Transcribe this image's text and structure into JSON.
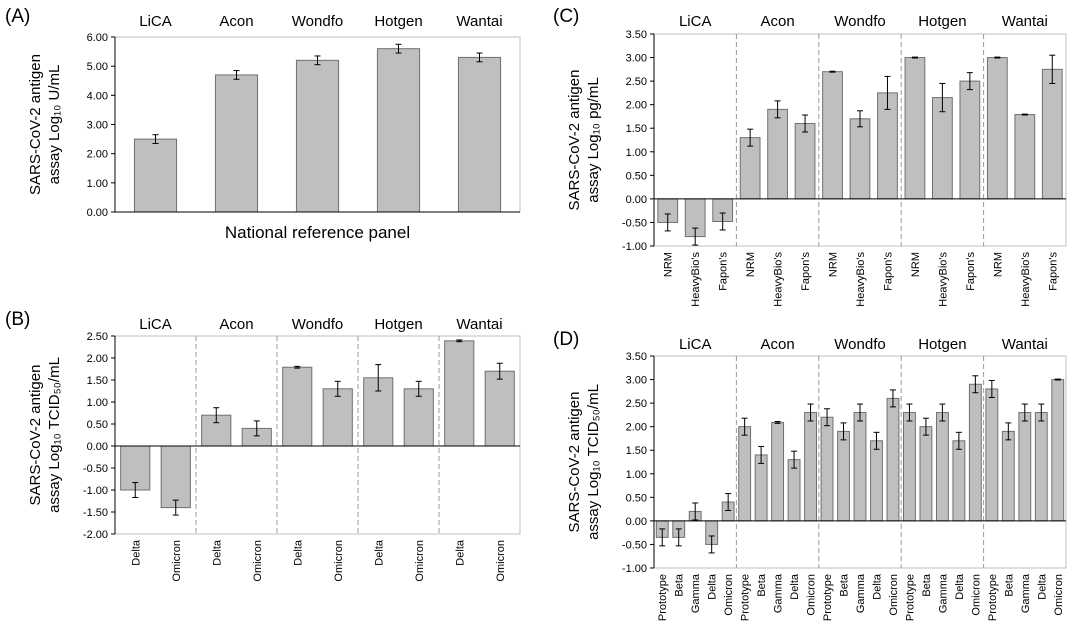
{
  "chart_data": [
    {
      "panel": "(A)",
      "type": "bar",
      "ylabel_line1": "SARS-CoV-2 antigen",
      "ylabel_line2": "assay Log₁₀ U/mL",
      "xlabel": "National reference panel",
      "ylim": [
        0,
        6
      ],
      "yticks": [
        "0.00",
        "1.00",
        "2.00",
        "3.00",
        "4.00",
        "5.00",
        "6.00"
      ],
      "groups": [
        {
          "name": "LiCA",
          "categories": [
            ""
          ],
          "values": [
            2.5
          ],
          "errors": [
            0.15
          ]
        },
        {
          "name": "Acon",
          "categories": [
            ""
          ],
          "values": [
            4.7
          ],
          "errors": [
            0.15
          ]
        },
        {
          "name": "Wondfo",
          "categories": [
            ""
          ],
          "values": [
            5.2
          ],
          "errors": [
            0.15
          ]
        },
        {
          "name": "Hotgen",
          "categories": [
            ""
          ],
          "values": [
            5.6
          ],
          "errors": [
            0.15
          ]
        },
        {
          "name": "Wantai",
          "categories": [
            ""
          ],
          "values": [
            5.3
          ],
          "errors": [
            0.15
          ]
        }
      ]
    },
    {
      "panel": "(B)",
      "type": "bar",
      "ylabel_line1": "SARS-CoV-2 antigen",
      "ylabel_line2": "assay Log₁₀ TCID₅₀/mL",
      "xlabel": "",
      "ylim": [
        -2,
        2.5
      ],
      "yticks": [
        "-2.00",
        "-1.50",
        "-1.00",
        "-0.50",
        "0.00",
        "0.50",
        "1.00",
        "1.50",
        "2.00",
        "2.50"
      ],
      "groups": [
        {
          "name": "LiCA",
          "categories": [
            "Delta",
            "Omicron"
          ],
          "values": [
            -1.0,
            -1.4
          ],
          "errors": [
            0.17,
            0.17
          ]
        },
        {
          "name": "Acon",
          "categories": [
            "Delta",
            "Omicron"
          ],
          "values": [
            0.7,
            0.4
          ],
          "errors": [
            0.17,
            0.17
          ]
        },
        {
          "name": "Wondfo",
          "categories": [
            "Delta",
            "Omicron"
          ],
          "values": [
            1.79,
            1.3
          ],
          "errors": [
            0.02,
            0.17
          ]
        },
        {
          "name": "Hotgen",
          "categories": [
            "Delta",
            "Omicron"
          ],
          "values": [
            1.55,
            1.3
          ],
          "errors": [
            0.3,
            0.17
          ]
        },
        {
          "name": "Wantai",
          "categories": [
            "Delta",
            "Omicron"
          ],
          "values": [
            2.39,
            1.7
          ],
          "errors": [
            0.02,
            0.18
          ]
        }
      ]
    },
    {
      "panel": "(C)",
      "type": "bar",
      "ylabel_line1": "SARS-CoV-2 antigen",
      "ylabel_line2": "assay Log₁₀ pg/mL",
      "xlabel": "",
      "ylim": [
        -1,
        3.5
      ],
      "yticks": [
        "-1.00",
        "-0.50",
        "0.00",
        "0.50",
        "1.00",
        "1.50",
        "2.00",
        "2.50",
        "3.00",
        "3.50"
      ],
      "groups": [
        {
          "name": "LiCA",
          "categories": [
            "NRM",
            "HeavyBio's",
            "Fapon's"
          ],
          "values": [
            -0.5,
            -0.8,
            -0.48
          ],
          "errors": [
            0.18,
            0.18,
            0.18
          ]
        },
        {
          "name": "Acon",
          "categories": [
            "NRM",
            "HeavyBio's",
            "Fapon's"
          ],
          "values": [
            1.3,
            1.9,
            1.6
          ],
          "errors": [
            0.18,
            0.18,
            0.18
          ]
        },
        {
          "name": "Wondfo",
          "categories": [
            "NRM",
            "HeavyBio's",
            "Fapon's"
          ],
          "values": [
            2.7,
            1.7,
            2.25
          ],
          "errors": [
            0.01,
            0.17,
            0.35
          ]
        },
        {
          "name": "Hotgen",
          "categories": [
            "NRM",
            "HeavyBio's",
            "Fapon's"
          ],
          "values": [
            3.0,
            2.15,
            2.5
          ],
          "errors": [
            0.01,
            0.3,
            0.18
          ]
        },
        {
          "name": "Wantai",
          "categories": [
            "NRM",
            "HeavyBio's",
            "Fapon's"
          ],
          "values": [
            3.0,
            1.79,
            2.75
          ],
          "errors": [
            0.01,
            0.01,
            0.3
          ]
        }
      ]
    },
    {
      "panel": "(D)",
      "type": "bar",
      "ylabel_line1": "SARS-CoV-2 antigen",
      "ylabel_line2": "assay Log₁₀ TCID₅₀/mL",
      "xlabel": "",
      "ylim": [
        -1,
        3.5
      ],
      "yticks": [
        "-1.00",
        "-0.50",
        "0.00",
        "0.50",
        "1.00",
        "1.50",
        "2.00",
        "2.50",
        "3.00",
        "3.50"
      ],
      "groups": [
        {
          "name": "LiCA",
          "categories": [
            "Prototype",
            "Beta",
            "Gamma",
            "Delta",
            "Omicron"
          ],
          "values": [
            -0.35,
            -0.35,
            0.2,
            -0.5,
            0.4
          ],
          "errors": [
            0.18,
            0.18,
            0.18,
            0.18,
            0.18
          ]
        },
        {
          "name": "Acon",
          "categories": [
            "Prototype",
            "Beta",
            "Gamma",
            "Delta",
            "Omicron"
          ],
          "values": [
            2.0,
            1.4,
            2.09,
            1.3,
            2.3
          ],
          "errors": [
            0.18,
            0.18,
            0.02,
            0.18,
            0.18
          ]
        },
        {
          "name": "Wondfo",
          "categories": [
            "Prototype",
            "Beta",
            "Gamma",
            "Delta",
            "Omicron"
          ],
          "values": [
            2.2,
            1.9,
            2.3,
            1.7,
            2.6
          ],
          "errors": [
            0.18,
            0.18,
            0.18,
            0.18,
            0.18
          ]
        },
        {
          "name": "Hotgen",
          "categories": [
            "Prototype",
            "Beta",
            "Gamma",
            "Delta",
            "Omicron"
          ],
          "values": [
            2.3,
            2.0,
            2.3,
            1.7,
            2.9
          ],
          "errors": [
            0.18,
            0.18,
            0.18,
            0.18,
            0.18
          ]
        },
        {
          "name": "Wantai",
          "categories": [
            "Prototype",
            "Beta",
            "Gamma",
            "Delta",
            "Omicron"
          ],
          "values": [
            2.8,
            1.9,
            2.3,
            2.3,
            3.0
          ],
          "errors": [
            0.18,
            0.18,
            0.18,
            0.18,
            0.01
          ]
        }
      ]
    }
  ]
}
